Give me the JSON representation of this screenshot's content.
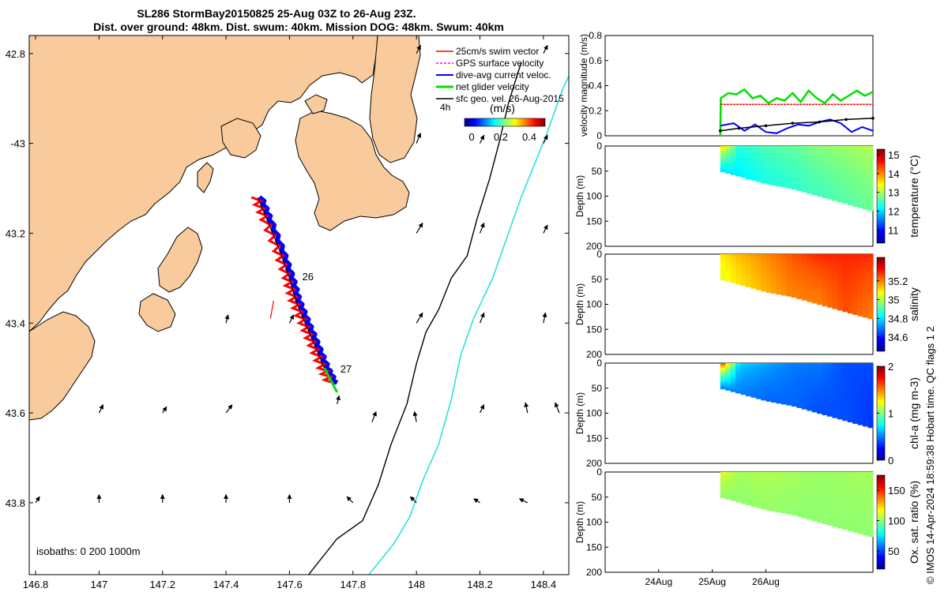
{
  "title": {
    "line1": "SL286 StormBay20150825 25-Aug 03Z to 26-Aug 23Z.",
    "line2": "Dist. over ground: 48km. Dist. swum: 40km. Mission DOG: 48km. Swum: 40km"
  },
  "colors": {
    "land": "#F9CB9C",
    "isobath_200": "#000000",
    "isobath_1000": "#30E0E0",
    "swim": "#FF0000",
    "gps": "#FF00FF",
    "dive_avg": "#0000FF",
    "net": "#00E000",
    "geo": "#000000"
  },
  "chart_data": [
    {
      "type": "map",
      "name": "track-map",
      "xlim": [
        146.78,
        148.48
      ],
      "ylim": [
        -43.96,
        -42.76
      ],
      "x_ticks": [
        146.8,
        147,
        147.2,
        147.4,
        147.6,
        147.8,
        148,
        148.2,
        148.4
      ],
      "x_tick_labels": [
        "146.8",
        "147",
        "147.2",
        "147.4",
        "147.6",
        "147.8",
        "148",
        "148.2",
        "148.4"
      ],
      "y_ticks": [
        -42.8,
        -43,
        -43.2,
        -43.4,
        -43.6,
        -43.8
      ],
      "y_tick_labels": [
        "42.8",
        "-43",
        "43.2",
        "43.4",
        "43.6",
        "43.8"
      ],
      "legend": {
        "placement": "top-right",
        "entries": [
          "25cm/s swim vector",
          "GPS surface velocity",
          "dive-avg current veloc.",
          "net glider velocity",
          "sfc geo. vel. 26-Aug-2015"
        ]
      },
      "colorbar": {
        "label": "(m/s)",
        "ticks": [
          "0",
          "0.2",
          "0.4"
        ],
        "range": [
          0,
          0.5
        ],
        "vector_label": "4h"
      },
      "isobath_label": "isobaths: 0   200  1000m",
      "track": [
        [
          147.5,
          -43.12
        ],
        [
          147.53,
          -43.17
        ],
        [
          147.57,
          -43.24
        ],
        [
          147.6,
          -43.3
        ],
        [
          147.62,
          -43.35
        ],
        [
          147.65,
          -43.4
        ],
        [
          147.68,
          -43.45
        ],
        [
          147.71,
          -43.5
        ],
        [
          147.74,
          -43.54
        ]
      ],
      "track_labels": [
        {
          "label": "26",
          "lon": 147.64,
          "lat": -43.305
        },
        {
          "label": "27",
          "lon": 147.76,
          "lat": -43.51
        }
      ],
      "isobath_200m": [
        [
          147.66,
          -43.96
        ],
        [
          147.75,
          -43.88
        ],
        [
          147.83,
          -43.84
        ],
        [
          147.88,
          -43.76
        ],
        [
          147.92,
          -43.67
        ],
        [
          147.97,
          -43.58
        ],
        [
          148.0,
          -43.49
        ],
        [
          148.03,
          -43.42
        ],
        [
          148.07,
          -43.37
        ],
        [
          148.11,
          -43.3
        ],
        [
          148.16,
          -43.25
        ],
        [
          148.19,
          -43.17
        ],
        [
          148.23,
          -43.08
        ],
        [
          148.26,
          -43.0
        ],
        [
          148.29,
          -42.91
        ],
        [
          148.33,
          -42.82
        ]
      ],
      "isobath_1000m": [
        [
          147.85,
          -43.96
        ],
        [
          147.93,
          -43.89
        ],
        [
          147.98,
          -43.83
        ],
        [
          148.02,
          -43.75
        ],
        [
          148.07,
          -43.67
        ],
        [
          148.11,
          -43.57
        ],
        [
          148.14,
          -43.47
        ],
        [
          148.18,
          -43.39
        ],
        [
          148.24,
          -43.3
        ],
        [
          148.29,
          -43.2
        ],
        [
          148.33,
          -43.12
        ],
        [
          148.37,
          -43.05
        ],
        [
          148.41,
          -42.98
        ],
        [
          148.46,
          -42.88
        ],
        [
          148.48,
          -42.85
        ]
      ],
      "geo_vectors": [
        {
          "lon": 147.75,
          "lat": -43.58,
          "u": 0.01,
          "v": 0.04
        },
        {
          "lon": 147.86,
          "lat": -43.62,
          "u": 0.02,
          "v": 0.05
        },
        {
          "lon": 148.0,
          "lat": -43.62,
          "u": -0.01,
          "v": 0.05
        },
        {
          "lon": 148.2,
          "lat": -43.6,
          "u": 0.02,
          "v": 0.04
        },
        {
          "lon": 148.35,
          "lat": -43.6,
          "u": -0.01,
          "v": 0.05
        },
        {
          "lon": 148.45,
          "lat": -43.6,
          "u": -0.02,
          "v": 0.05
        },
        {
          "lon": 147.4,
          "lat": -43.6,
          "u": 0.03,
          "v": 0.04
        },
        {
          "lon": 147.2,
          "lat": -43.6,
          "u": 0.02,
          "v": 0.03
        },
        {
          "lon": 147.0,
          "lat": -43.6,
          "u": 0.02,
          "v": 0.04
        },
        {
          "lon": 147.4,
          "lat": -43.4,
          "u": 0.01,
          "v": 0.04
        },
        {
          "lon": 147.6,
          "lat": -43.4,
          "u": 0.02,
          "v": 0.04
        },
        {
          "lon": 148.0,
          "lat": -43.4,
          "u": 0.03,
          "v": 0.05
        },
        {
          "lon": 148.2,
          "lat": -43.4,
          "u": 0.02,
          "v": 0.05
        },
        {
          "lon": 148.4,
          "lat": -43.4,
          "u": 0.01,
          "v": 0.05
        },
        {
          "lon": 148.0,
          "lat": -43.2,
          "u": 0.03,
          "v": 0.05
        },
        {
          "lon": 148.2,
          "lat": -43.2,
          "u": 0.02,
          "v": 0.05
        },
        {
          "lon": 148.4,
          "lat": -43.2,
          "u": 0.02,
          "v": 0.04
        },
        {
          "lon": 148.0,
          "lat": -43.0,
          "u": 0.02,
          "v": 0.05
        },
        {
          "lon": 148.2,
          "lat": -43.0,
          "u": 0.02,
          "v": 0.04
        },
        {
          "lon": 148.4,
          "lat": -43.0,
          "u": 0.02,
          "v": 0.04
        },
        {
          "lon": 148.0,
          "lat": -42.8,
          "u": 0.02,
          "v": 0.04
        },
        {
          "lon": 148.4,
          "lat": -42.8,
          "u": 0.02,
          "v": 0.04
        },
        {
          "lon": 146.8,
          "lat": -43.8,
          "u": 0.02,
          "v": 0.03
        },
        {
          "lon": 147.0,
          "lat": -43.8,
          "u": 0.0,
          "v": 0.04
        },
        {
          "lon": 147.2,
          "lat": -43.8,
          "u": 0.0,
          "v": 0.04
        },
        {
          "lon": 147.4,
          "lat": -43.8,
          "u": 0.0,
          "v": 0.04
        },
        {
          "lon": 147.6,
          "lat": -43.8,
          "u": 0.0,
          "v": 0.04
        },
        {
          "lon": 147.8,
          "lat": -43.8,
          "u": -0.03,
          "v": 0.03
        },
        {
          "lon": 148.0,
          "lat": -43.8,
          "u": -0.03,
          "v": 0.03
        },
        {
          "lon": 148.2,
          "lat": -43.8,
          "u": -0.03,
          "v": 0.02
        },
        {
          "lon": 148.35,
          "lat": -43.8,
          "u": -0.04,
          "v": 0.02
        }
      ]
    },
    {
      "type": "line",
      "name": "velocity-magnitude",
      "ylabel": "velocity magnitude (m/s)",
      "xlim": [
        0,
        5
      ],
      "ylim": [
        0,
        0.8
      ],
      "y_ticks": [
        0,
        0.2,
        0.4,
        0.6,
        0.8
      ],
      "y_tick_labels": [
        "0",
        "0.2",
        "0.4",
        "0.6",
        "0.8"
      ],
      "series": [
        {
          "name": "net glider velocity",
          "x": [
            2.15,
            2.16,
            2.3,
            2.45,
            2.6,
            2.75,
            2.9,
            3.05,
            3.2,
            3.35,
            3.5,
            3.65,
            3.8,
            3.95,
            4.1,
            4.25,
            4.4,
            4.55,
            4.7,
            4.85,
            5.0
          ],
          "values": [
            0.0,
            0.3,
            0.34,
            0.33,
            0.37,
            0.3,
            0.32,
            0.26,
            0.3,
            0.28,
            0.34,
            0.27,
            0.36,
            0.3,
            0.26,
            0.33,
            0.28,
            0.32,
            0.36,
            0.32,
            0.35
          ]
        },
        {
          "name": "25cm/s swim vector",
          "x": [
            2.15,
            5.0
          ],
          "values": [
            0.25,
            0.25
          ]
        },
        {
          "name": "dive-avg current veloc.",
          "x": [
            2.15,
            2.4,
            2.6,
            2.8,
            3.0,
            3.2,
            3.4,
            3.6,
            3.8,
            4.0,
            4.2,
            4.4,
            4.6,
            4.8,
            5.0
          ],
          "values": [
            0.08,
            0.1,
            0.04,
            0.09,
            0.03,
            0.02,
            0.06,
            0.09,
            0.08,
            0.11,
            0.13,
            0.1,
            0.03,
            0.07,
            0.04
          ]
        },
        {
          "name": "sfc geo. vel.",
          "x": [
            2.15,
            2.5,
            3.0,
            3.5,
            4.0,
            4.5,
            5.0
          ],
          "values": [
            0.04,
            0.06,
            0.08,
            0.1,
            0.11,
            0.13,
            0.14
          ]
        }
      ]
    },
    {
      "type": "heatmap",
      "name": "temperature-section",
      "ylabel": "Depth (m)",
      "colorbar_label": "temperature (°C)",
      "colorbar_range": [
        10.3,
        15.3
      ],
      "colorbar_ticks": [
        "15",
        "14",
        "13",
        "12",
        "11"
      ],
      "y_ticks": [
        "0",
        "50",
        "100",
        "150",
        "200"
      ],
      "ylim": [
        0,
        200
      ],
      "x": [
        2.15,
        2.5,
        3.0,
        3.5,
        4.0,
        4.5,
        5.0
      ],
      "max_depth": [
        50,
        60,
        75,
        85,
        100,
        115,
        130
      ],
      "profile_top": [
        14.0,
        12.4,
        12.6,
        12.7,
        12.9,
        13.0,
        13.1
      ],
      "profile_bottom": [
        12.0,
        12.1,
        12.3,
        12.4,
        12.5,
        12.6,
        12.7
      ]
    },
    {
      "type": "heatmap",
      "name": "salinity-section",
      "ylabel": "Depth (m)",
      "colorbar_label": "salinity",
      "colorbar_range": [
        34.45,
        35.45
      ],
      "colorbar_ticks": [
        "35.2",
        "35",
        "34.8",
        "34.6"
      ],
      "y_ticks": [
        "0",
        "50",
        "100",
        "150",
        "200"
      ],
      "ylim": [
        0,
        200
      ],
      "x": [
        2.15,
        2.5,
        3.0,
        3.5,
        4.0,
        4.5,
        5.0
      ],
      "max_depth": [
        50,
        60,
        75,
        85,
        100,
        115,
        130
      ],
      "profile_top": [
        35.1,
        35.15,
        35.2,
        35.25,
        35.3,
        35.3,
        35.3
      ],
      "profile_bottom": [
        35.05,
        35.1,
        35.15,
        35.2,
        35.2,
        35.25,
        35.2
      ]
    },
    {
      "type": "heatmap",
      "name": "chla-section",
      "ylabel": "Depth (m)",
      "colorbar_label": "chl-a (mg m-3)",
      "colorbar_range": [
        0,
        2
      ],
      "colorbar_ticks": [
        "2",
        "1",
        "0"
      ],
      "y_ticks": [
        "0",
        "50",
        "100",
        "150",
        "200"
      ],
      "ylim": [
        0,
        200
      ],
      "x": [
        2.15,
        2.5,
        3.0,
        3.5,
        4.0,
        4.5,
        5.0
      ],
      "max_depth": [
        50,
        60,
        75,
        85,
        100,
        115,
        130
      ],
      "profile_top": [
        1.9,
        0.7,
        0.6,
        0.5,
        0.5,
        0.4,
        0.4
      ],
      "profile_bottom": [
        0.5,
        0.5,
        0.45,
        0.45,
        0.4,
        0.4,
        0.35
      ]
    },
    {
      "type": "heatmap",
      "name": "oxygen-section",
      "ylabel": "Depth (m)",
      "colorbar_label": "Ox. sat. ratio (%)",
      "colorbar_range": [
        20,
        175
      ],
      "colorbar_ticks": [
        "150",
        "100",
        "50"
      ],
      "y_ticks": [
        "0",
        "50",
        "100",
        "150",
        "200"
      ],
      "ylim": [
        0,
        200
      ],
      "x_ticks": [
        1,
        2,
        3
      ],
      "x_tick_labels": [
        "24Aug",
        "25Aug",
        "26Aug"
      ],
      "x": [
        2.15,
        2.5,
        3.0,
        3.5,
        4.0,
        4.5,
        5.0
      ],
      "max_depth": [
        50,
        60,
        75,
        85,
        100,
        115,
        130
      ],
      "profile_top": [
        115,
        104,
        106,
        104,
        102,
        103,
        104
      ],
      "profile_bottom": [
        100,
        100,
        101,
        100,
        100,
        100,
        100
      ]
    }
  ],
  "credit": "© IMOS 14-Apr-2024 18:59:38 Hobart time. QC flags 1  2"
}
